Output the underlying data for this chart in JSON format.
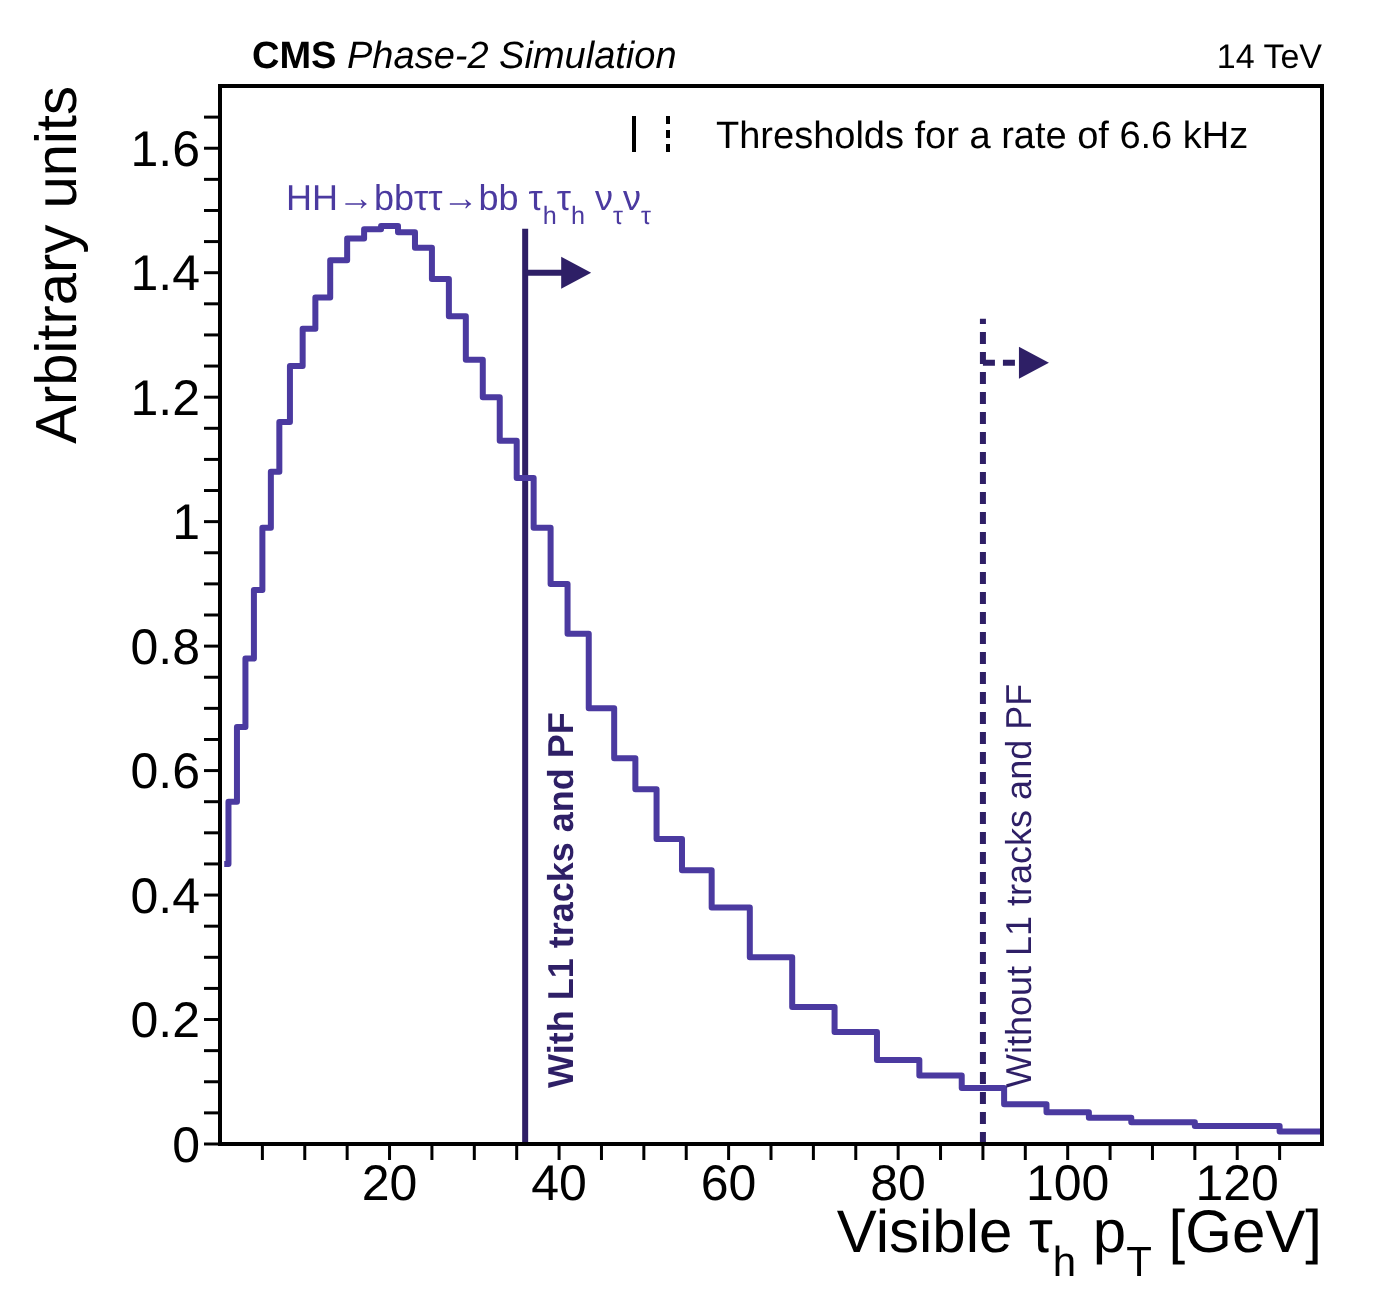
{
  "chart_data": {
    "type": "step",
    "title": "CMS Phase-2 Simulation",
    "xlabel": "Visible τ$_{h}$ p$_{T}$ [GeV]",
    "ylabel": "Arbitrary units",
    "annotations": [
      "14 TeV",
      "Thresholds for a rate of 6.6 kHz",
      "HH→bbττ→bb τ$_{h}$τ$_{h}$ ν$_{τ}$ν$_{τ}$"
    ],
    "color": "#4b3aa0",
    "x": [
      0.5,
      1.5,
      2.5,
      3.5,
      4.5,
      5.5,
      6.5,
      7.5,
      9,
      10.5,
      12,
      14,
      16,
      18,
      20,
      22,
      24,
      26,
      28,
      30,
      32,
      34,
      36,
      38,
      40,
      42,
      45,
      48,
      50,
      53,
      56,
      60,
      65,
      70,
      75,
      80,
      85,
      90,
      95,
      100,
      105,
      110,
      120,
      130
    ],
    "values": [
      0.45,
      0.55,
      0.67,
      0.78,
      0.89,
      0.99,
      1.08,
      1.16,
      1.25,
      1.31,
      1.36,
      1.42,
      1.455,
      1.47,
      1.475,
      1.465,
      1.44,
      1.39,
      1.33,
      1.26,
      1.2,
      1.13,
      1.07,
      0.99,
      0.9,
      0.82,
      0.7,
      0.62,
      0.57,
      0.49,
      0.44,
      0.38,
      0.3,
      0.22,
      0.18,
      0.135,
      0.11,
      0.09,
      0.064,
      0.051,
      0.042,
      0.035,
      0.029,
      0.02
    ],
    "xlim": [
      0,
      130
    ],
    "xticks": [
      {
        "value": 5,
        "label": null
      },
      {
        "value": 10,
        "label": null
      },
      {
        "value": 15,
        "label": null
      },
      20,
      {
        "value": 25,
        "label": null
      },
      {
        "value": 30,
        "label": null
      },
      {
        "value": 35,
        "label": null
      },
      40,
      {
        "value": 45,
        "label": null
      },
      {
        "value": 50,
        "label": null
      },
      {
        "value": 55,
        "label": null
      },
      60,
      {
        "value": 65,
        "label": null
      },
      {
        "value": 70,
        "label": null
      },
      {
        "value": 75,
        "label": null
      },
      80,
      {
        "value": 85,
        "label": null
      },
      {
        "value": 90,
        "label": null
      },
      {
        "value": 95,
        "label": null
      },
      100,
      {
        "value": 105,
        "label": null
      },
      {
        "value": 110,
        "label": null
      },
      {
        "value": 115,
        "label": null
      },
      120,
      {
        "value": 125,
        "label": null
      }
    ],
    "ylim": [
      0,
      1.7
    ],
    "yticks": [
      0,
      {
        "value": 0.05,
        "label": null
      },
      {
        "value": 0.1,
        "label": null
      },
      {
        "value": 0.15,
        "label": null
      },
      0.2,
      {
        "value": 0.25,
        "label": null
      },
      {
        "value": 0.3,
        "label": null
      },
      {
        "value": 0.35,
        "label": null
      },
      0.4,
      {
        "value": 0.45,
        "label": null
      },
      {
        "value": 0.5,
        "label": null
      },
      {
        "value": 0.55,
        "label": null
      },
      0.6,
      {
        "value": 0.65,
        "label": null
      },
      {
        "value": 0.7,
        "label": null
      },
      {
        "value": 0.75,
        "label": null
      },
      0.8,
      {
        "value": 0.85,
        "label": null
      },
      {
        "value": 0.9,
        "label": null
      },
      {
        "value": 0.95,
        "label": null
      },
      1,
      {
        "value": 1.05,
        "label": null
      },
      {
        "value": 1.1,
        "label": null
      },
      {
        "value": 1.15,
        "label": null
      },
      1.2,
      {
        "value": 1.25,
        "label": null
      },
      {
        "value": 1.3,
        "label": null
      },
      {
        "value": 1.35,
        "label": null
      },
      1.4,
      {
        "value": 1.45,
        "label": null
      },
      {
        "value": 1.5,
        "label": null
      },
      {
        "value": 1.55,
        "label": null
      },
      1.6,
      {
        "value": 1.65,
        "label": null
      }
    ],
    "ref_lines": [
      {
        "axis": "x",
        "value": 36,
        "label": "With L1 tracks and PF",
        "line_style": "solid",
        "color": "#2e1f66"
      },
      {
        "axis": "x",
        "value": 90,
        "label": "Without L1 tracks and PF",
        "line_style": "dashed",
        "color": "#2e1f66"
      }
    ]
  }
}
